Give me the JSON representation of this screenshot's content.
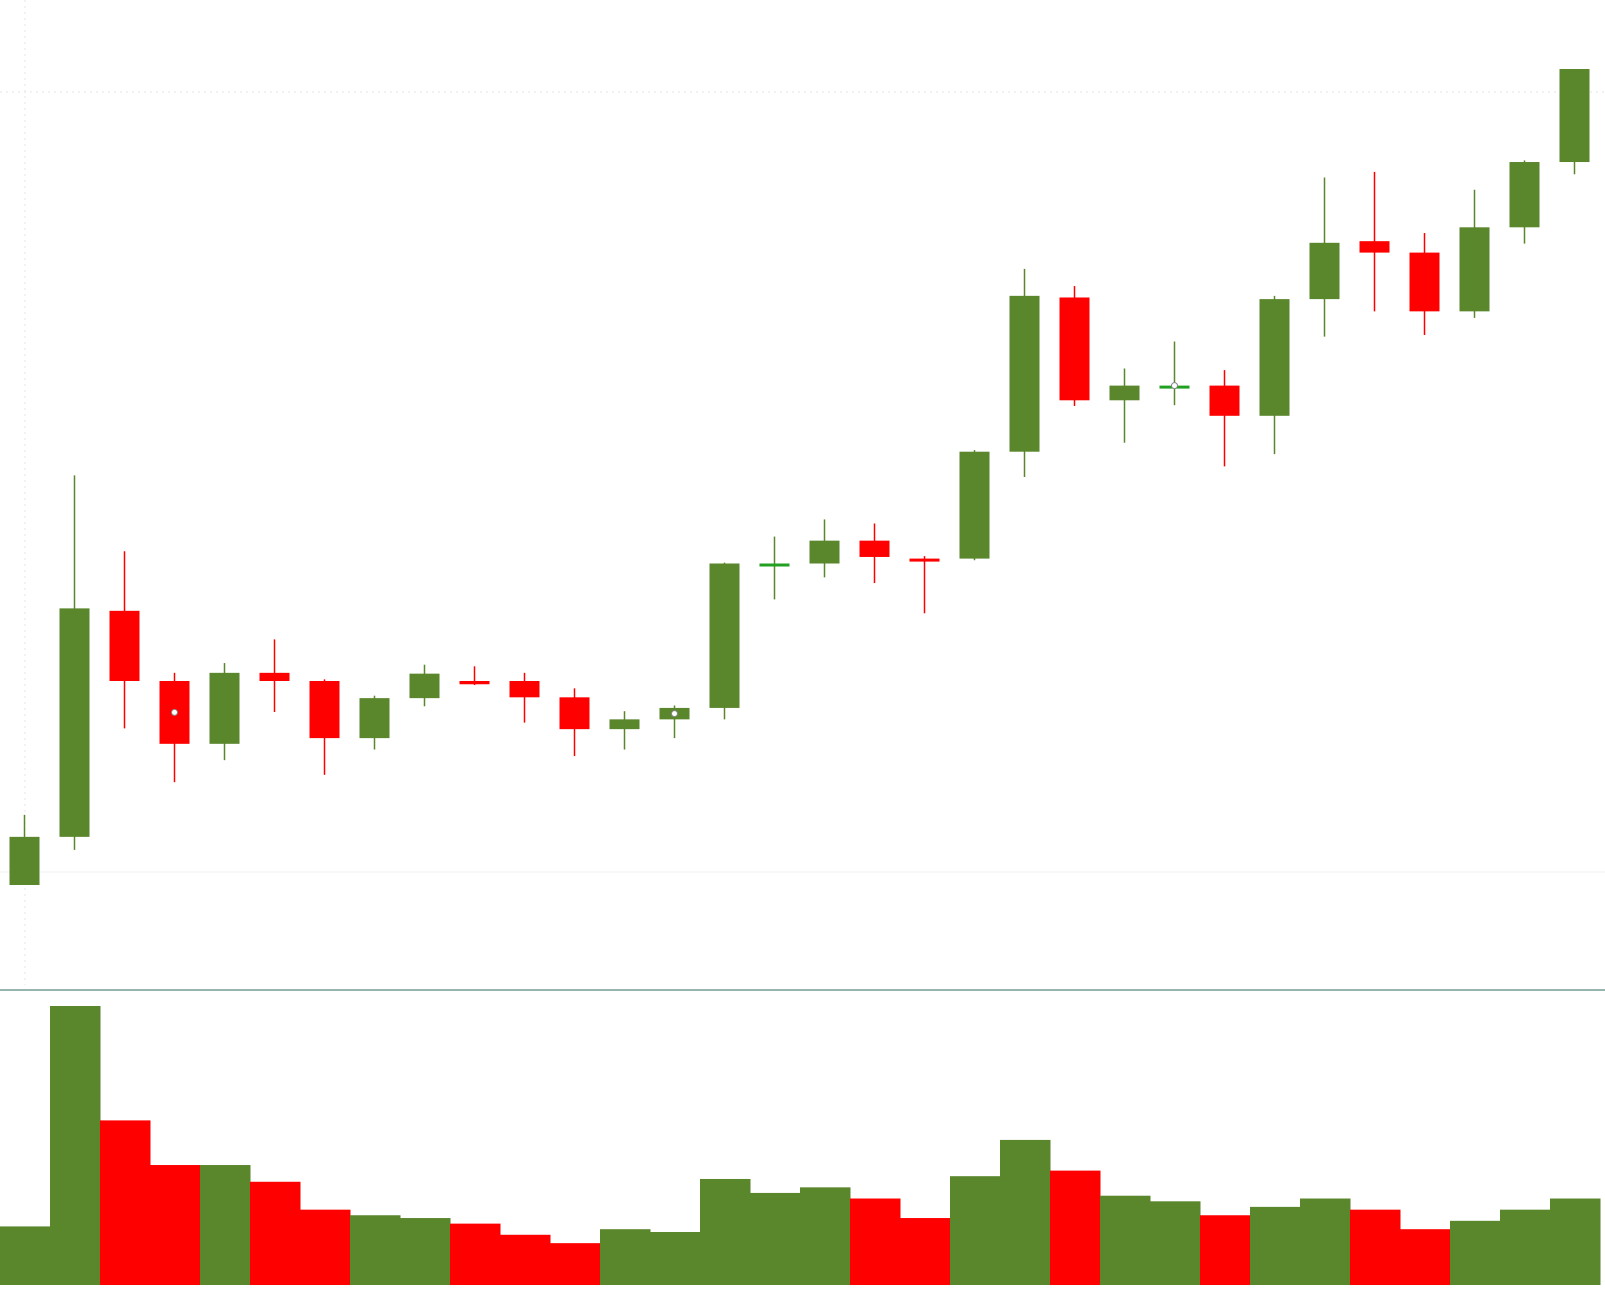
{
  "chart_data": {
    "type": "candlestick",
    "title": "",
    "xlabel": "",
    "ylabel": "",
    "ylim": [
      0,
      100
    ],
    "volume_ylim": [
      0,
      100
    ],
    "grid": true,
    "legend": "none",
    "colors": {
      "up": "#5a862c",
      "down": "#ff0000",
      "doji_up": "#22a022"
    },
    "candles": [
      {
        "open": 0,
        "high": 8.6,
        "low": 0,
        "close": 5.9,
        "volume": 21
      },
      {
        "open": 5.9,
        "high": 50.2,
        "low": 4.3,
        "close": 33.9,
        "volume": 100
      },
      {
        "open": 33.6,
        "high": 40.9,
        "low": 19.2,
        "close": 25.0,
        "volume": 59
      },
      {
        "open": 25.0,
        "high": 26.0,
        "low": 12.6,
        "close": 17.3,
        "volume": 43
      },
      {
        "open": 17.3,
        "high": 27.2,
        "low": 15.3,
        "close": 26.0,
        "volume": 43
      },
      {
        "open": 26.0,
        "high": 30.1,
        "low": 21.2,
        "close": 25.0,
        "volume": 37
      },
      {
        "open": 25.0,
        "high": 25.2,
        "low": 13.5,
        "close": 18.0,
        "volume": 27
      },
      {
        "open": 18.0,
        "high": 23.2,
        "low": 16.6,
        "close": 22.9,
        "volume": 25
      },
      {
        "open": 22.9,
        "high": 27.0,
        "low": 21.9,
        "close": 25.9,
        "volume": 24
      },
      {
        "open": 25.0,
        "high": 26.8,
        "low": 24.5,
        "close": 24.6,
        "volume": 22
      },
      {
        "open": 25.0,
        "high": 26.0,
        "low": 19.9,
        "close": 23.0,
        "volume": 18
      },
      {
        "open": 23.0,
        "high": 24.1,
        "low": 15.8,
        "close": 19.1,
        "volume": 15
      },
      {
        "open": 19.1,
        "high": 21.3,
        "low": 16.6,
        "close": 20.3,
        "volume": 20
      },
      {
        "open": 20.3,
        "high": 22.0,
        "low": 18.0,
        "close": 21.7,
        "volume": 19
      },
      {
        "open": 21.7,
        "high": 39.5,
        "low": 20.3,
        "close": 39.4,
        "volume": 38
      },
      {
        "open": 39.4,
        "high": 42.7,
        "low": 35.0,
        "close": 39.4,
        "volume": 33
      },
      {
        "open": 39.4,
        "high": 44.8,
        "low": 37.7,
        "close": 42.2,
        "volume": 35
      },
      {
        "open": 42.2,
        "high": 44.3,
        "low": 37.0,
        "close": 40.2,
        "volume": 31
      },
      {
        "open": 40.0,
        "high": 40.3,
        "low": 33.3,
        "close": 39.8,
        "volume": 24
      },
      {
        "open": 40.0,
        "high": 53.3,
        "low": 39.8,
        "close": 53.1,
        "volume": 39
      },
      {
        "open": 53.1,
        "high": 75.5,
        "low": 50.0,
        "close": 72.2,
        "volume": 52
      },
      {
        "open": 72.0,
        "high": 73.4,
        "low": 58.7,
        "close": 59.4,
        "volume": 41
      },
      {
        "open": 59.4,
        "high": 63.3,
        "low": 54.2,
        "close": 61.2,
        "volume": 32
      },
      {
        "open": 61.2,
        "high": 66.6,
        "low": 58.8,
        "close": 61.2,
        "volume": 30
      },
      {
        "open": 61.2,
        "high": 63.1,
        "low": 51.3,
        "close": 57.5,
        "volume": 25
      },
      {
        "open": 57.5,
        "high": 72.2,
        "low": 52.8,
        "close": 71.8,
        "volume": 28
      },
      {
        "open": 71.8,
        "high": 86.7,
        "low": 67.2,
        "close": 78.7,
        "volume": 31
      },
      {
        "open": 78.9,
        "high": 87.4,
        "low": 70.3,
        "close": 77.5,
        "volume": 27
      },
      {
        "open": 77.5,
        "high": 79.9,
        "low": 67.4,
        "close": 70.3,
        "volume": 20
      },
      {
        "open": 70.3,
        "high": 85.2,
        "low": 69.5,
        "close": 80.6,
        "volume": 23
      },
      {
        "open": 80.6,
        "high": 88.8,
        "low": 78.6,
        "close": 88.6,
        "volume": 27
      },
      {
        "open": 88.6,
        "high": 100,
        "low": 87.1,
        "close": 100,
        "volume": 31
      }
    ]
  }
}
